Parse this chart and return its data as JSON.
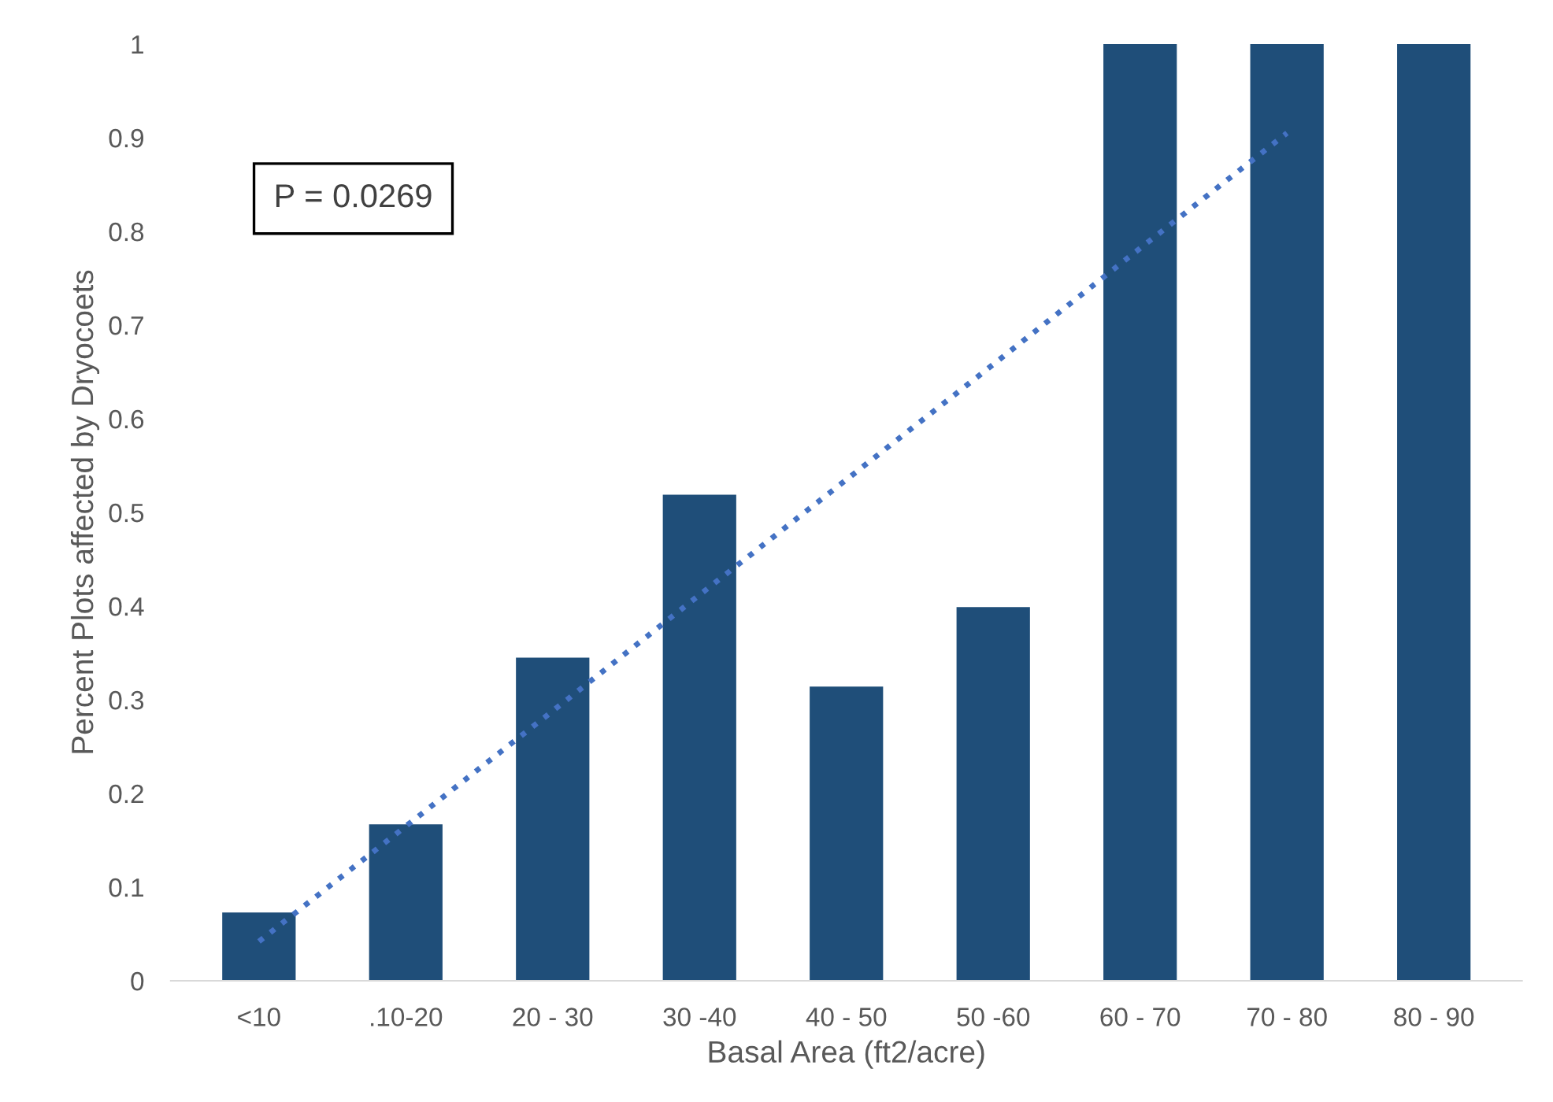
{
  "chart_data": {
    "type": "bar",
    "xlabel": "Basal Area (ft2/acre)",
    "ylabel": "Percent Plots affected by Dryocoets",
    "categories": [
      "<10",
      ".10-20",
      "20 - 30",
      "30 -40",
      "40 - 50",
      "50 -60",
      "60 - 70",
      "70 - 80",
      "80 - 90"
    ],
    "series": [
      {
        "color": "#1f4e79",
        "values": [
          0.073,
          0.167,
          0.345,
          0.519,
          0.314,
          0.399,
          1,
          1,
          1
        ]
      },
      {
        "type": "line",
        "color": "#4472c4",
        "line_style": "dotted",
        "values": [
          0.042,
          0.165,
          0.288,
          0.412,
          0.535,
          0.658,
          0.782,
          0.905,
          null
        ]
      }
    ],
    "ylim": [
      0,
      1
    ],
    "yticks": [
      0,
      0.1,
      0.2,
      0.3,
      0.4,
      0.5,
      0.6,
      0.7,
      0.8,
      0.9,
      1
    ],
    "grid": false,
    "legend": false,
    "annotations": [
      "P = 0.0269"
    ]
  }
}
